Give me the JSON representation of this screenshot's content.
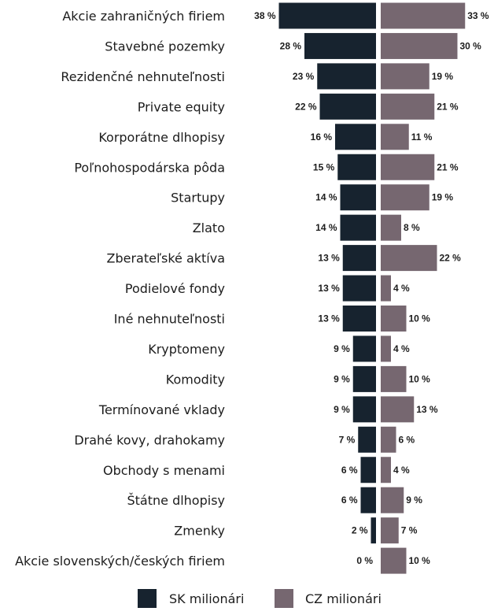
{
  "chart_data": {
    "type": "bar",
    "orientation": "horizontal-butterfly",
    "unit_suffix": " %",
    "categories": [
      "Akcie zahraničných firiem",
      "Stavebné pozemky",
      "Rezidenčné nehnuteľnosti",
      "Private equity",
      "Korporátne dlhopisy",
      "Poľnohospodárska pôda",
      "Startupy",
      "Zlato",
      "Zberateľské aktíva",
      "Podielové fondy",
      "Iné nehnuteľnosti",
      "Kryptomeny",
      "Komodity",
      "Termínované vklady",
      "Drahé kovy, drahokamy",
      "Obchody s menami",
      "Štátne dlhopisy",
      "Zmenky",
      "Akcie slovenských/českých firiem"
    ],
    "series": [
      {
        "name": "SK milionári",
        "color": "#17232f",
        "values": [
          38,
          28,
          23,
          22,
          16,
          15,
          14,
          14,
          13,
          13,
          13,
          9,
          9,
          9,
          7,
          6,
          6,
          2,
          0
        ]
      },
      {
        "name": "CZ milionári",
        "color": "#766770",
        "values": [
          33,
          30,
          19,
          21,
          11,
          21,
          19,
          8,
          22,
          4,
          10,
          4,
          10,
          13,
          6,
          4,
          9,
          7,
          10
        ]
      }
    ],
    "legend_position": "bottom-center",
    "grid": false
  }
}
